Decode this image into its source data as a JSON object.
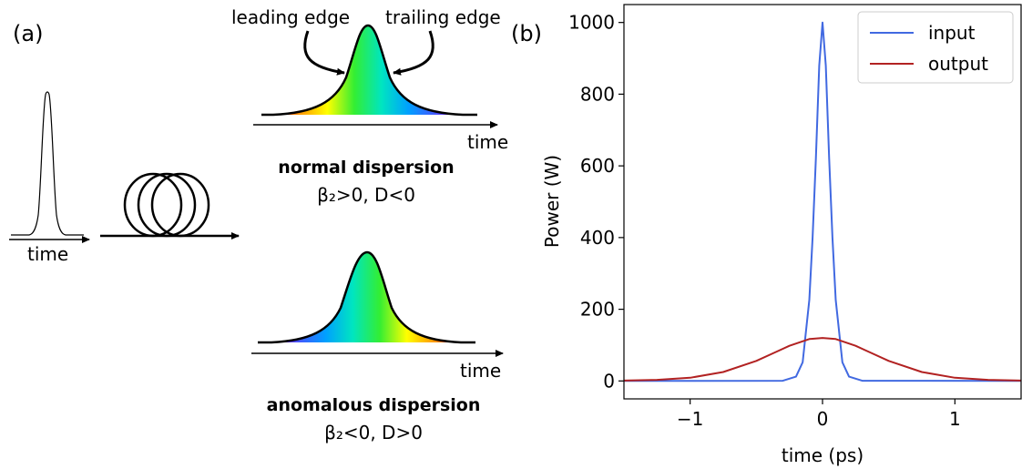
{
  "panel_a": {
    "label": "(a)",
    "input_time_label": "time",
    "leading_edge_label": "leading edge",
    "trailing_edge_label": "trailing edge",
    "normal": {
      "time_label": "time",
      "title": "normal dispersion",
      "condition": "β₂>0, D<0"
    },
    "anomalous": {
      "time_label": "time",
      "title": "anomalous dispersion",
      "condition": "β₂<0, D>0"
    },
    "spectrum_colors": [
      "#ff1a00",
      "#ff9900",
      "#ffff00",
      "#33ee33",
      "#00e5c0",
      "#00a0ff",
      "#4455ff",
      "#9900ff"
    ]
  },
  "panel_b": {
    "label": "(b)"
  },
  "chart_data": {
    "type": "line",
    "xlabel": "time (ps)",
    "ylabel": "Power (W)",
    "xlim": [
      -1.5,
      1.5
    ],
    "ylim": [
      -50,
      1050
    ],
    "xticks": [
      -1,
      0,
      1
    ],
    "xtick_labels": [
      "−1",
      "0",
      "1"
    ],
    "yticks": [
      0,
      200,
      400,
      600,
      800,
      1000
    ],
    "ytick_labels": [
      "0",
      "200",
      "400",
      "600",
      "800",
      "1000"
    ],
    "grid": false,
    "legend_position": "top-right",
    "series": [
      {
        "name": "input",
        "color": "#4169e1",
        "x": [
          -1.5,
          -0.3,
          -0.2,
          -0.15,
          -0.1,
          -0.075,
          -0.05,
          -0.025,
          0,
          0.025,
          0.05,
          0.075,
          0.1,
          0.15,
          0.2,
          0.3,
          1.5
        ],
        "y": [
          0,
          0.5,
          12,
          52,
          226,
          400,
          620,
          880,
          1000,
          880,
          620,
          400,
          226,
          52,
          12,
          0.5,
          0
        ]
      },
      {
        "name": "output",
        "color": "#b22222",
        "x": [
          -1.5,
          -1.25,
          -1.0,
          -0.75,
          -0.5,
          -0.35,
          -0.25,
          -0.1,
          0,
          0.1,
          0.25,
          0.35,
          0.5,
          0.75,
          1.0,
          1.25,
          1.5
        ],
        "y": [
          1,
          3,
          9,
          25,
          56,
          81,
          98,
          117,
          120,
          117,
          98,
          81,
          56,
          25,
          9,
          3,
          1
        ]
      }
    ]
  }
}
